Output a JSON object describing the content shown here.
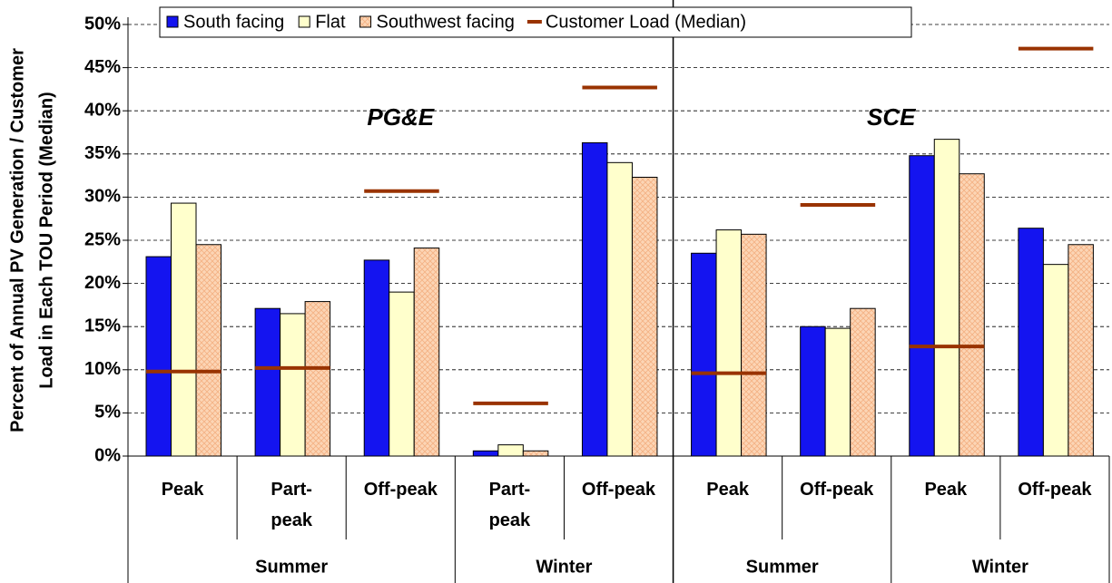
{
  "chart_data": {
    "type": "bar",
    "y_label": [
      "Percent of Annual PV Generation / Customer",
      "Load in Each TOU Period (Median)"
    ],
    "categories": [
      "Peak",
      "Part-\npeak",
      "Off-peak",
      "Part-\npeak",
      "Off-peak",
      "Peak",
      "Off-peak",
      "Peak",
      "Off-peak"
    ],
    "seasons": [
      "Summer",
      "Winter",
      "Summer",
      "Winter"
    ],
    "panels": [
      "PG&E",
      "SCE"
    ],
    "series": [
      {
        "name": "South facing",
        "color": "#1414f0",
        "values": [
          23.1,
          17.1,
          22.7,
          0.6,
          36.3,
          23.5,
          15.0,
          34.8,
          26.4
        ]
      },
      {
        "name": "Flat",
        "color": "#ffffcc",
        "values": [
          29.3,
          16.5,
          19.0,
          1.3,
          34.0,
          26.2,
          14.8,
          36.7,
          22.2
        ]
      },
      {
        "name": "Southwest facing",
        "color": "#fcd5b5",
        "values": [
          24.5,
          17.9,
          24.1,
          0.6,
          32.3,
          25.7,
          17.1,
          32.7,
          24.5
        ]
      },
      {
        "name": "Customer Load (Median)",
        "color": "#993300",
        "values": [
          9.8,
          10.2,
          30.7,
          6.1,
          42.7,
          9.6,
          29.1,
          12.7,
          47.2
        ]
      }
    ],
    "ylim": [
      0,
      50
    ],
    "yticks": [
      {
        "value": 0,
        "label": "0%"
      },
      {
        "value": 5,
        "label": "5%"
      },
      {
        "value": 10,
        "label": "10%"
      },
      {
        "value": 15,
        "label": "15%"
      },
      {
        "value": 20,
        "label": "20%"
      },
      {
        "value": 25,
        "label": "25%"
      },
      {
        "value": 30,
        "label": "30%"
      },
      {
        "value": 35,
        "label": "35%"
      },
      {
        "value": 40,
        "label": "40%"
      },
      {
        "value": 45,
        "label": "45%"
      },
      {
        "value": 50,
        "label": "50%"
      }
    ],
    "grid": true
  }
}
